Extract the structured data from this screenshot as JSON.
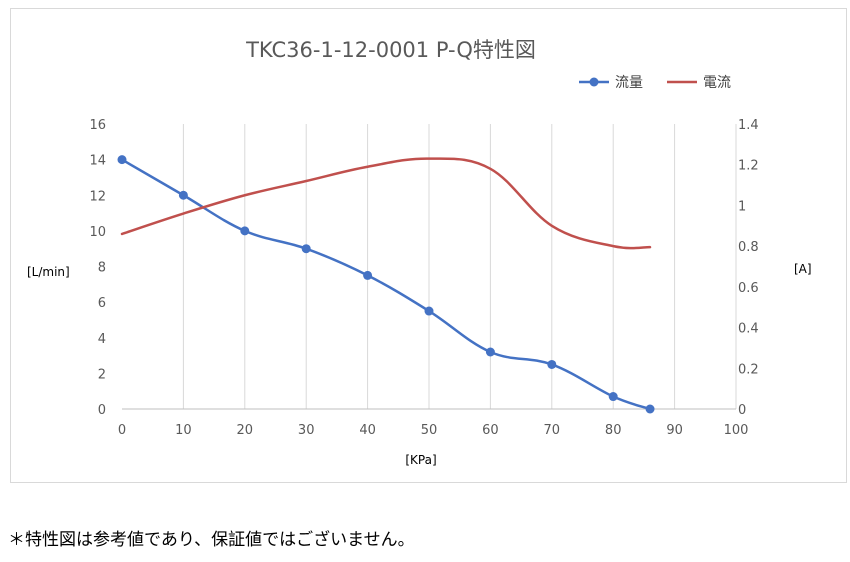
{
  "chart_data": {
    "type": "line",
    "title": "TKC36-1-12-0001 P-Q特性図",
    "xlabel": "[KPa]",
    "ylabel_left": "[L/min]",
    "ylabel_right": "[A]",
    "xlim": [
      0,
      100
    ],
    "ylim_left": [
      0,
      16
    ],
    "ylim_right": [
      0,
      1.4
    ],
    "x_ticks": [
      "0",
      "10",
      "20",
      "30",
      "40",
      "50",
      "60",
      "70",
      "80",
      "90",
      "100"
    ],
    "y_ticks_left": [
      "0",
      "2",
      "4",
      "6",
      "8",
      "10",
      "12",
      "14",
      "16"
    ],
    "y_ticks_right": [
      "0",
      "0.2",
      "0.4",
      "0.6",
      "0.8",
      "1",
      "1.2",
      "1.4"
    ],
    "grid": "vertical",
    "legend_position": "top-right",
    "series": [
      {
        "name": "流量",
        "axis": "left",
        "color": "#4472c4",
        "markers": true,
        "x": [
          0,
          10,
          20,
          30,
          40,
          50,
          60,
          70,
          80,
          86
        ],
        "y": [
          14,
          12,
          10,
          9,
          7.5,
          5.5,
          3.2,
          2.5,
          0.7,
          0
        ]
      },
      {
        "name": "電流",
        "axis": "right",
        "color": "#c0504d",
        "markers": false,
        "x": [
          0,
          10,
          20,
          30,
          40,
          50,
          60,
          70,
          80,
          86
        ],
        "y": [
          0.86,
          0.96,
          1.05,
          1.12,
          1.19,
          1.23,
          1.18,
          0.9,
          0.8,
          0.795
        ]
      }
    ]
  },
  "footnote": "＊特性図は参考値であり、保証値ではございません。"
}
